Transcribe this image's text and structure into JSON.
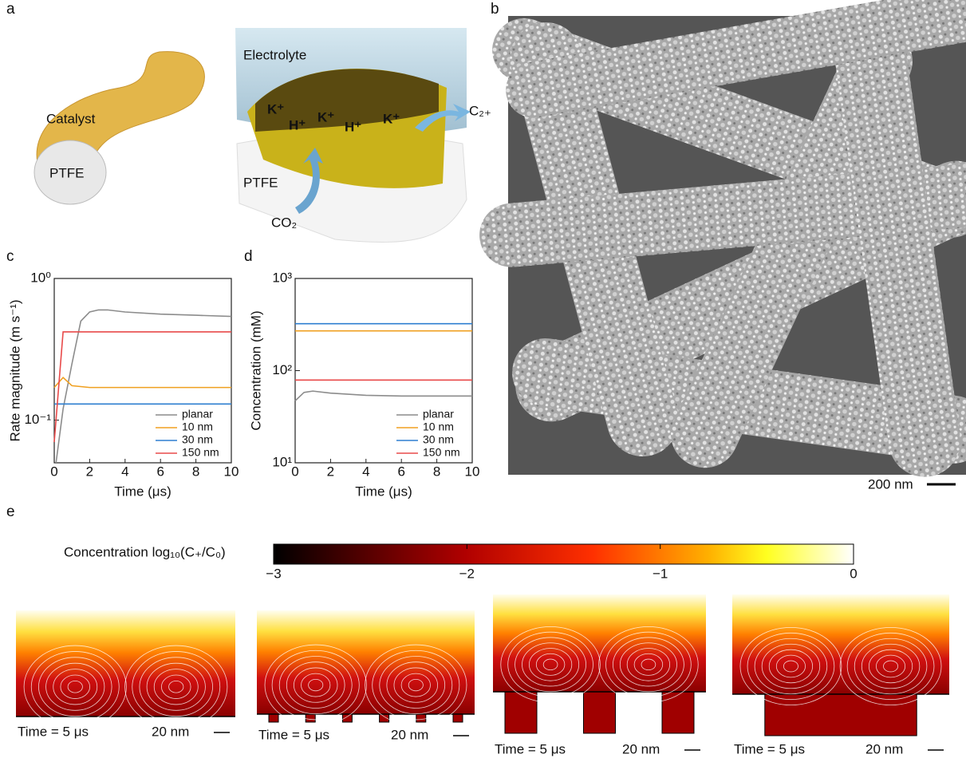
{
  "panel_labels": [
    "a",
    "b",
    "c",
    "d",
    "e"
  ],
  "panel_a": {
    "catalyst": "Catalyst",
    "ptfe_left": "PTFE",
    "electrolyte": "Electrolyte",
    "ions": [
      "K⁺",
      "H⁺",
      "K⁺",
      "H⁺",
      "K⁺"
    ],
    "product": "C₂₊",
    "ptfe_right": "PTFE",
    "reactant": "CO₂"
  },
  "panel_b": {
    "scale_bar": "200 nm"
  },
  "chart_data": [
    {
      "type": "line",
      "y_label": "Rate magnitude (m s⁻¹)",
      "x_label": "Time (μs)",
      "log_y": true,
      "xlim": [
        0,
        10
      ],
      "xticks": [
        0,
        2,
        4,
        6,
        8,
        10
      ],
      "ylim": [
        0.05,
        1
      ],
      "yticks": [
        {
          "value": 1,
          "label": "10⁰"
        },
        {
          "value": 0.1,
          "label": "10⁻¹"
        }
      ],
      "legend": "lower right",
      "series": [
        {
          "name": "planar",
          "color": "#8c8c8c",
          "x": [
            0.1,
            0.5,
            1,
            1.5,
            2,
            2.5,
            3,
            4,
            6,
            8,
            10
          ],
          "values": [
            0.05,
            0.12,
            0.25,
            0.5,
            0.58,
            0.6,
            0.6,
            0.58,
            0.56,
            0.55,
            0.54
          ]
        },
        {
          "name": "10 nm",
          "color": "#f0a020",
          "x": [
            0,
            0.5,
            1,
            2,
            10
          ],
          "values": [
            0.17,
            0.2,
            0.175,
            0.17,
            0.17
          ]
        },
        {
          "name": "30 nm",
          "color": "#2e7fd0",
          "x": [
            0,
            10
          ],
          "values": [
            0.13,
            0.13
          ]
        },
        {
          "name": "150 nm",
          "color": "#e84a4a",
          "x": [
            0,
            0.5,
            10
          ],
          "values": [
            0.07,
            0.42,
            0.42
          ]
        }
      ]
    },
    {
      "type": "line",
      "y_label": "Concentration  (mM)",
      "x_label": "Time (μs)",
      "log_y": true,
      "xlim": [
        0,
        10
      ],
      "xticks": [
        0,
        2,
        4,
        6,
        8,
        10
      ],
      "ylim": [
        10,
        1000
      ],
      "yticks": [
        {
          "value": 1000,
          "label": "10³"
        },
        {
          "value": 100,
          "label": "10²"
        },
        {
          "value": 10,
          "label": "10¹"
        }
      ],
      "legend": "lower right",
      "series": [
        {
          "name": "planar",
          "color": "#8c8c8c",
          "x": [
            0,
            0.5,
            1,
            2,
            4,
            6,
            8,
            10
          ],
          "values": [
            47,
            58,
            60,
            57,
            54,
            53,
            53,
            53
          ]
        },
        {
          "name": "10 nm",
          "color": "#f0a020",
          "x": [
            0,
            10
          ],
          "values": [
            270,
            270
          ]
        },
        {
          "name": "30 nm",
          "color": "#2e7fd0",
          "x": [
            0,
            10
          ],
          "values": [
            323,
            323
          ]
        },
        {
          "name": "150 nm",
          "color": "#e84a4a",
          "x": [
            0,
            10
          ],
          "values": [
            79,
            79
          ]
        }
      ]
    }
  ],
  "colorbar": {
    "label": "Concentration log₁₀(C₊/C₀)",
    "lim": [
      -3,
      0
    ],
    "ticks": [
      {
        "value": -3,
        "label": "−3"
      },
      {
        "value": -2,
        "label": "−2"
      },
      {
        "value": -1,
        "label": "−1"
      },
      0
    ]
  },
  "panel_e": {
    "images": [
      {
        "time": "Time = 5 μs",
        "scale": "20 nm"
      },
      {
        "time": "Time = 5 μs",
        "scale": "20 nm"
      },
      {
        "time": "Time = 5 μs",
        "scale": "20 nm"
      },
      {
        "time": "Time = 5 μs",
        "scale": "20 nm"
      }
    ]
  }
}
